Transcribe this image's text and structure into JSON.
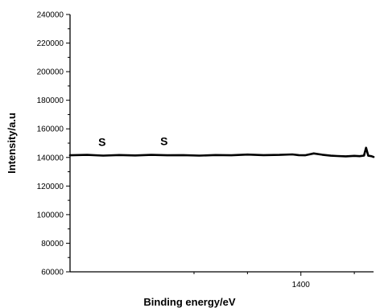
{
  "chart_data": {
    "type": "line",
    "title": "",
    "xlabel": "Binding energy/eV",
    "ylabel": "Intensity/a.u",
    "xlim": [
      1184,
      1468
    ],
    "ylim": [
      60000,
      240000
    ],
    "x_ticks": [
      1400
    ],
    "x_tick_labels": [
      "1400"
    ],
    "y_ticks": [
      60000,
      80000,
      100000,
      120000,
      140000,
      160000,
      180000,
      200000,
      220000,
      240000
    ],
    "y_tick_labels": [
      "60000",
      "80000",
      "100000",
      "120000",
      "140000",
      "160000",
      "180000",
      "200000",
      "220000",
      "240000"
    ],
    "grid": false,
    "legend": "none",
    "series": [
      {
        "color": "#000000",
        "x": [
          1184,
          1200,
          1215,
          1230,
          1245,
          1260,
          1275,
          1290,
          1305,
          1320,
          1335,
          1350,
          1365,
          1380,
          1392,
          1398,
          1404,
          1412,
          1420,
          1428,
          1434,
          1442,
          1450,
          1455,
          1459,
          1461,
          1463,
          1466,
          1468
        ],
        "y": [
          141500,
          141800,
          141300,
          141700,
          141400,
          141800,
          141500,
          141600,
          141300,
          141700,
          141500,
          142000,
          141600,
          141800,
          142100,
          141600,
          141500,
          142800,
          141900,
          141200,
          141000,
          140800,
          141100,
          140900,
          141300,
          146800,
          141200,
          140900,
          140300
        ]
      }
    ],
    "annotations": [
      {
        "text": "S",
        "x": 1214,
        "y": 148000
      },
      {
        "text": "S",
        "x": 1272,
        "y": 148500
      }
    ]
  }
}
